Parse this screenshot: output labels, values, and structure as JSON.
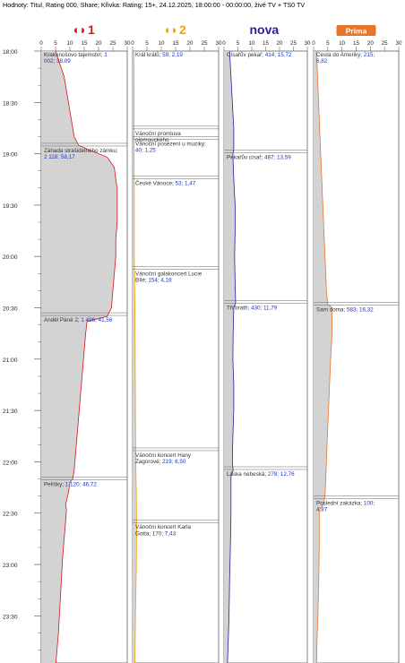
{
  "header": {
    "text": "Hodnoty: Titul, Rating 000, Share; Křivka: Rating; 15+, 24.12.2025, 18:00:00 - 00:00:00, živé TV + TS0 TV"
  },
  "x_ticks": [
    "0",
    "5",
    "10",
    "15",
    "20",
    "25",
    "30"
  ],
  "time_labels": [
    "18:00",
    "18:30",
    "19:00",
    "19:30",
    "20:00",
    "20:30",
    "21:00",
    "21:30",
    "22:00",
    "22:30",
    "23:00",
    "23:30"
  ],
  "colors": {
    "ct1": "#d8141c",
    "ct2": "#f5a300",
    "nova": "#2d1b9c",
    "prima": "#e8742a",
    "fill": "#d3d3d3",
    "axis": "#4a4a4a",
    "value_text": "#1a35c8"
  },
  "chart_data": [
    {
      "type": "area",
      "channel": "ČT1",
      "logo_text": "ČT1",
      "logo_icon": "ct1-logo-icon",
      "xlim": [
        0,
        30
      ],
      "time_range": [
        "18:00",
        "00:00"
      ],
      "programs": [
        {
          "title": "Krakonošovo tajemství;",
          "vals": "1 002; 38,09",
          "start": "18:00",
          "end": "18:55"
        },
        {
          "title": "Záhada strašidelného zámku;",
          "vals": "2 118; 58,17",
          "start": "18:56",
          "end": "20:34"
        },
        {
          "title": "Anděl Páně 2;",
          "vals": "1 496; 41,56",
          "start": "20:35",
          "end": "22:09"
        },
        {
          "title": "Pelíšky;",
          "vals": "1 120; 46,72",
          "start": "22:11",
          "end": "00:00"
        }
      ],
      "curve": [
        [
          0,
          5
        ],
        [
          5,
          6
        ],
        [
          10,
          7
        ],
        [
          15,
          8
        ],
        [
          20,
          8.5
        ],
        [
          25,
          9
        ],
        [
          30,
          9.5
        ],
        [
          35,
          10
        ],
        [
          40,
          10.5
        ],
        [
          45,
          11
        ],
        [
          50,
          11.5
        ],
        [
          55,
          13
        ],
        [
          58,
          17
        ],
        [
          62,
          23
        ],
        [
          68,
          25.5
        ],
        [
          75,
          26
        ],
        [
          80,
          26.5
        ],
        [
          90,
          26.5
        ],
        [
          100,
          26.5
        ],
        [
          110,
          26
        ],
        [
          120,
          26
        ],
        [
          130,
          25.5
        ],
        [
          140,
          25
        ],
        [
          150,
          24.5
        ],
        [
          155,
          23
        ],
        [
          158,
          16
        ],
        [
          165,
          15.5
        ],
        [
          175,
          15
        ],
        [
          185,
          14.5
        ],
        [
          195,
          14
        ],
        [
          205,
          13.5
        ],
        [
          215,
          13
        ],
        [
          225,
          12.5
        ],
        [
          235,
          12
        ],
        [
          245,
          11.5
        ],
        [
          250,
          11
        ],
        [
          252,
          10
        ],
        [
          258,
          9.5
        ],
        [
          265,
          8.5
        ],
        [
          268,
          8.8
        ],
        [
          275,
          8.5
        ],
        [
          285,
          8
        ],
        [
          295,
          7.5
        ],
        [
          310,
          7
        ],
        [
          325,
          6.5
        ],
        [
          340,
          6
        ],
        [
          350,
          5.5
        ],
        [
          360,
          5
        ]
      ]
    },
    {
      "type": "area",
      "channel": "ČT2",
      "logo_text": "ČT2",
      "logo_icon": "ct2-logo-icon",
      "xlim": [
        0,
        30
      ],
      "time_range": [
        "18:00",
        "00:00"
      ],
      "programs": [
        {
          "title": "Král králů;",
          "vals": "59; 2,19",
          "start": "18:00",
          "end": "18:45"
        },
        {
          "title": "Vánoční promluva olomouckého",
          "vals": "",
          "start": "18:46",
          "end": "18:51"
        },
        {
          "title": "Vánoční posezení u muziky;",
          "vals": "40; 1,25",
          "start": "18:52",
          "end": "19:14"
        },
        {
          "title": "České Vánoce;",
          "vals": "53; 1,47",
          "start": "19:15",
          "end": "20:07"
        },
        {
          "title": "Vánoční galakoncert Lucie Bílé;",
          "vals": "154; 4,18",
          "start": "20:08",
          "end": "21:53"
        },
        {
          "title": "Vánoční koncert Hany Zagorové;",
          "vals": "219; 6,50",
          "start": "21:54",
          "end": "22:35"
        },
        {
          "title": "Vánoční koncert Karla Gotta;",
          "vals": "170; 7,43",
          "start": "22:36",
          "end": "00:00"
        }
      ],
      "curve": [
        [
          0,
          0.4
        ],
        [
          30,
          0.5
        ],
        [
          60,
          0.5
        ],
        [
          90,
          0.6
        ],
        [
          120,
          0.6
        ],
        [
          150,
          0.8
        ],
        [
          180,
          0.9
        ],
        [
          210,
          1.0
        ],
        [
          240,
          1.1
        ],
        [
          260,
          1.3
        ],
        [
          280,
          1.4
        ],
        [
          300,
          1.3
        ],
        [
          330,
          1.0
        ],
        [
          360,
          0.8
        ]
      ]
    },
    {
      "type": "area",
      "channel": "Nova",
      "logo_text": "nova",
      "logo_icon": "nova-logo-icon",
      "xlim": [
        0,
        30
      ],
      "time_range": [
        "18:00",
        "00:00"
      ],
      "programs": [
        {
          "title": "Císařův pekař;",
          "vals": "414; 15,72",
          "start": "18:00",
          "end": "18:59"
        },
        {
          "title": "Pekařův císař;",
          "vals": "487; 13,59",
          "start": "19:00",
          "end": "20:27"
        },
        {
          "title": "Tři bratři;",
          "vals": "430; 11,79",
          "start": "20:28",
          "end": "22:04"
        },
        {
          "title": "Láska nebeská;",
          "vals": "278; 12,76",
          "start": "22:05",
          "end": "00:00"
        }
      ],
      "curve": [
        [
          0,
          2
        ],
        [
          15,
          2.5
        ],
        [
          30,
          3
        ],
        [
          45,
          3.5
        ],
        [
          58,
          3.5
        ],
        [
          60,
          3.2
        ],
        [
          75,
          3.5
        ],
        [
          90,
          4
        ],
        [
          105,
          4
        ],
        [
          120,
          3.8
        ],
        [
          135,
          4
        ],
        [
          147,
          4.2
        ],
        [
          150,
          3.5
        ],
        [
          165,
          3.3
        ],
        [
          180,
          3.2
        ],
        [
          195,
          3.5
        ],
        [
          210,
          3.5
        ],
        [
          225,
          3.2
        ],
        [
          240,
          3.0
        ],
        [
          245,
          3.3
        ],
        [
          248,
          2.5
        ],
        [
          270,
          2.5
        ],
        [
          290,
          2.3
        ],
        [
          310,
          2
        ],
        [
          330,
          1.8
        ],
        [
          345,
          1.5
        ],
        [
          360,
          1.2
        ]
      ]
    },
    {
      "type": "area",
      "channel": "Prima",
      "logo_text": "Prima",
      "logo_icon": "prima-logo-icon",
      "xlim": [
        0,
        30
      ],
      "time_range": [
        "18:00",
        "00:00"
      ],
      "programs": [
        {
          "title": "Cesta do Ameriky;",
          "vals": "215; 6,82",
          "start": "18:00",
          "end": "20:28"
        },
        {
          "title": "Sam doma;",
          "vals": "583; 16,32",
          "start": "20:29",
          "end": "22:21"
        },
        {
          "title": "Poslední zakázka;",
          "vals": "100; 4,87",
          "start": "22:22",
          "end": "00:00"
        }
      ],
      "curve": [
        [
          0,
          1
        ],
        [
          20,
          1.5
        ],
        [
          40,
          2
        ],
        [
          60,
          2.5
        ],
        [
          80,
          3
        ],
        [
          100,
          3.5
        ],
        [
          120,
          4
        ],
        [
          140,
          4.5
        ],
        [
          148,
          5
        ],
        [
          150,
          6.5
        ],
        [
          165,
          6.5
        ],
        [
          180,
          6
        ],
        [
          200,
          5.5
        ],
        [
          220,
          5
        ],
        [
          240,
          4.5
        ],
        [
          260,
          4
        ],
        [
          265,
          3.5
        ],
        [
          268,
          2
        ],
        [
          290,
          2
        ],
        [
          310,
          1.8
        ],
        [
          330,
          1.5
        ],
        [
          345,
          1.2
        ],
        [
          360,
          1
        ]
      ]
    }
  ]
}
